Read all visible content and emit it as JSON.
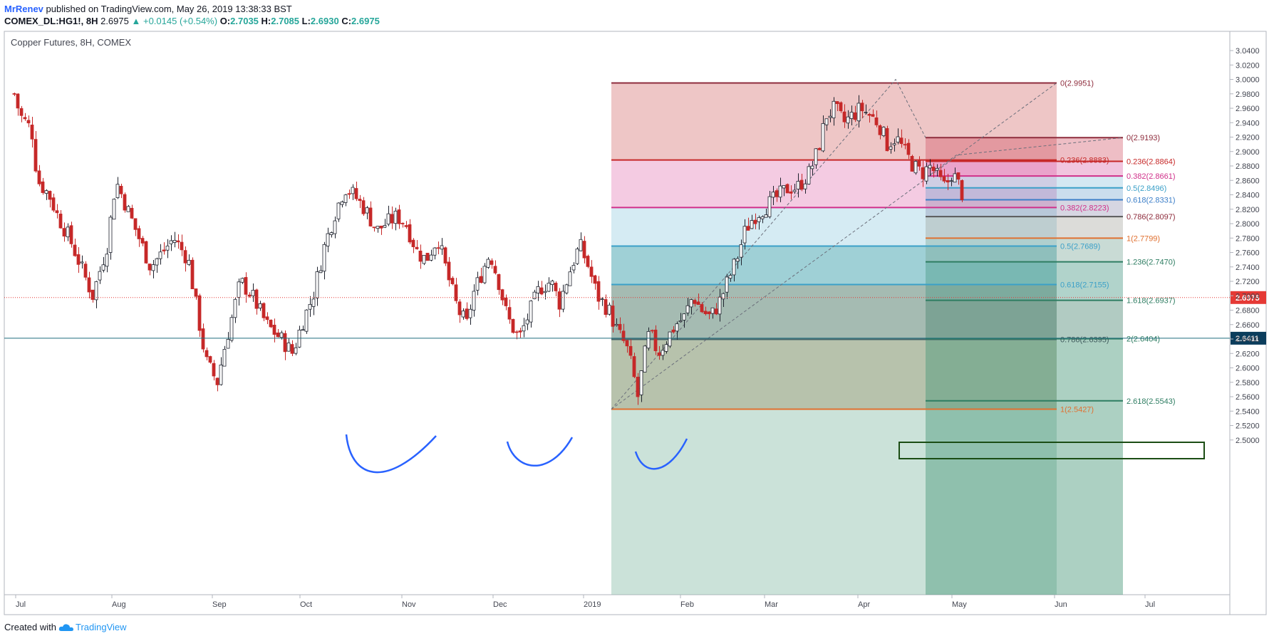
{
  "header": {
    "author": "MrRenev",
    "published_text": "published on TradingView.com, May 26, 2019 13:38:33 BST"
  },
  "symbol_line": {
    "symbol": "COMEX_DL:HG1!, 8H",
    "last": "2.6975",
    "change": "+0.0145 (+0.54%)",
    "open_label": "O:",
    "open": "2.7035",
    "high_label": "H:",
    "high": "2.7085",
    "low_label": "L:",
    "low": "2.6930",
    "close_label": "C:",
    "close": "2.6975"
  },
  "footer": {
    "created_with": "Created with",
    "brand": "TradingView"
  },
  "colors": {
    "up_candle": "#1e222d",
    "down_candle": "#c62828",
    "accent_blue": "#2962ff",
    "price_line": "#e53935",
    "level_line": "#1e6e7e",
    "label_dark": "#0b3d5c"
  },
  "chart_data": {
    "type": "candlestick",
    "title": "Copper Futures, 8H, COMEX",
    "ylim": [
      2.5,
      3.05
    ],
    "y_ticks": [
      "3.0400",
      "3.0200",
      "3.0000",
      "2.9800",
      "2.9600",
      "2.9400",
      "2.9200",
      "2.9000",
      "2.8800",
      "2.8600",
      "2.8400",
      "2.8200",
      "2.8000",
      "2.7800",
      "2.7600",
      "2.7400",
      "2.7200",
      "2.7000",
      "2.6800",
      "2.6600",
      "2.6400",
      "2.6200",
      "2.6000",
      "2.5800",
      "2.5600",
      "2.5400",
      "2.5200",
      "2.5000"
    ],
    "x_ticks": [
      "Jul",
      "Aug",
      "Sep",
      "Oct",
      "Nov",
      "Dec",
      "2019",
      "Feb",
      "Mar",
      "Apr",
      "May",
      "Jun",
      "Jul"
    ],
    "current_price": {
      "value": 2.6975,
      "label": "2.6975"
    },
    "level_line": {
      "value": 2.6411,
      "label": "2.6411"
    },
    "price_path": [
      [
        "2018-07-01",
        2.98
      ],
      [
        "2018-07-03",
        2.95
      ],
      [
        "2018-07-07",
        2.93
      ],
      [
        "2018-07-09",
        2.86
      ],
      [
        "2018-07-13",
        2.84
      ],
      [
        "2018-07-16",
        2.81
      ],
      [
        "2018-07-20",
        2.78
      ],
      [
        "2018-07-25",
        2.73
      ],
      [
        "2018-07-28",
        2.7
      ],
      [
        "2018-08-02",
        2.77
      ],
      [
        "2018-08-05",
        2.86
      ],
      [
        "2018-08-09",
        2.82
      ],
      [
        "2018-08-13",
        2.78
      ],
      [
        "2018-08-17",
        2.74
      ],
      [
        "2018-08-21",
        2.76
      ],
      [
        "2018-08-25",
        2.78
      ],
      [
        "2018-08-30",
        2.75
      ],
      [
        "2018-09-02",
        2.68
      ],
      [
        "2018-09-05",
        2.61
      ],
      [
        "2018-09-09",
        2.58
      ],
      [
        "2018-09-11",
        2.62
      ],
      [
        "2018-09-14",
        2.67
      ],
      [
        "2018-09-17",
        2.72
      ],
      [
        "2018-09-21",
        2.7
      ],
      [
        "2018-09-26",
        2.66
      ],
      [
        "2018-10-01",
        2.64
      ],
      [
        "2018-10-05",
        2.62
      ],
      [
        "2018-10-08",
        2.66
      ],
      [
        "2018-10-12",
        2.7
      ],
      [
        "2018-10-16",
        2.77
      ],
      [
        "2018-10-20",
        2.82
      ],
      [
        "2018-10-23",
        2.85
      ],
      [
        "2018-10-26",
        2.84
      ],
      [
        "2018-10-30",
        2.82
      ],
      [
        "2018-11-03",
        2.79
      ],
      [
        "2018-11-06",
        2.8
      ],
      [
        "2018-11-10",
        2.81
      ],
      [
        "2018-11-13",
        2.8
      ],
      [
        "2018-11-17",
        2.76
      ],
      [
        "2018-11-20",
        2.75
      ],
      [
        "2018-11-24",
        2.78
      ],
      [
        "2018-11-28",
        2.72
      ],
      [
        "2018-12-01",
        2.68
      ],
      [
        "2018-12-04",
        2.66
      ],
      [
        "2018-12-06",
        2.7
      ],
      [
        "2018-12-09",
        2.73
      ],
      [
        "2018-12-12",
        2.76
      ],
      [
        "2018-12-15",
        2.72
      ],
      [
        "2018-12-18",
        2.67
      ],
      [
        "2018-12-22",
        2.64
      ],
      [
        "2018-12-26",
        2.68
      ],
      [
        "2018-12-29",
        2.71
      ],
      [
        "2019-01-02",
        2.72
      ],
      [
        "2019-01-05",
        2.69
      ],
      [
        "2019-01-09",
        2.74
      ],
      [
        "2019-01-12",
        2.77
      ],
      [
        "2019-01-15",
        2.74
      ],
      [
        "2019-01-18",
        2.7
      ],
      [
        "2019-01-22",
        2.68
      ],
      [
        "2019-01-25",
        2.65
      ],
      [
        "2019-01-28",
        2.63
      ],
      [
        "2019-01-30",
        2.6
      ],
      [
        "2019-02-01",
        2.56
      ],
      [
        "2019-02-03",
        2.61
      ],
      [
        "2019-02-05",
        2.65
      ],
      [
        "2019-02-08",
        2.62
      ],
      [
        "2019-02-11",
        2.64
      ],
      [
        "2019-02-14",
        2.66
      ],
      [
        "2019-02-17",
        2.67
      ],
      [
        "2019-02-20",
        2.7
      ],
      [
        "2019-02-23",
        2.68
      ],
      [
        "2019-02-26",
        2.67
      ],
      [
        "2019-03-01",
        2.69
      ],
      [
        "2019-03-04",
        2.72
      ],
      [
        "2019-03-07",
        2.75
      ],
      [
        "2019-03-10",
        2.79
      ],
      [
        "2019-03-13",
        2.81
      ],
      [
        "2019-03-16",
        2.82
      ],
      [
        "2019-03-19",
        2.83
      ],
      [
        "2019-03-22",
        2.84
      ],
      [
        "2019-03-25",
        2.85
      ],
      [
        "2019-03-28",
        2.85
      ],
      [
        "2019-04-01",
        2.87
      ],
      [
        "2019-04-04",
        2.9
      ],
      [
        "2019-04-07",
        2.95
      ],
      [
        "2019-04-10",
        2.96
      ],
      [
        "2019-04-13",
        2.94
      ],
      [
        "2019-04-16",
        2.95
      ],
      [
        "2019-04-19",
        2.96
      ],
      [
        "2019-04-22",
        2.95
      ],
      [
        "2019-04-25",
        2.94
      ],
      [
        "2019-04-28",
        2.91
      ],
      [
        "2019-05-01",
        2.92
      ],
      [
        "2019-05-04",
        2.9
      ],
      [
        "2019-05-07",
        2.88
      ],
      [
        "2019-05-10",
        2.87
      ],
      [
        "2019-05-13",
        2.88
      ],
      [
        "2019-05-16",
        2.86
      ],
      [
        "2019-05-18",
        2.85
      ],
      [
        "2019-05-20",
        2.87
      ],
      [
        "2019-05-22",
        2.86
      ],
      [
        "2019-05-24",
        2.84
      ]
    ],
    "fib_retracement_1": {
      "levels": [
        {
          "label": "0(2.9951)",
          "value": 2.9951
        },
        {
          "label": "0.236(2.8883)",
          "value": 2.8883
        },
        {
          "label": "0.382(2.8223)",
          "value": 2.8223
        },
        {
          "label": "0.5(2.7689)",
          "value": 2.7689
        },
        {
          "label": "0.618(2.7155)",
          "value": 2.7155
        },
        {
          "label": "0.786(2.6395)",
          "value": 2.6395
        },
        {
          "label": "1(2.5427)",
          "value": 2.5427
        }
      ]
    },
    "fib_extension_2": {
      "levels": [
        {
          "label": "0(2.9193)",
          "value": 2.9193
        },
        {
          "label": "0.236(2.8864)",
          "value": 2.8864
        },
        {
          "label": "0.382(2.8661)",
          "value": 2.8661
        },
        {
          "label": "0.5(2.8496)",
          "value": 2.8496
        },
        {
          "label": "0.618(2.8331)",
          "value": 2.8331
        },
        {
          "label": "0.786(2.8097)",
          "value": 2.8097
        },
        {
          "label": "1(2.7799)",
          "value": 2.7799
        },
        {
          "label": "1.236(2.7470)",
          "value": 2.747
        },
        {
          "label": "1.618(2.6937)",
          "value": 2.6937
        },
        {
          "label": "2(2.6404)",
          "value": 2.6404
        },
        {
          "label": "2.618(2.5543)",
          "value": 2.5543
        }
      ]
    }
  }
}
